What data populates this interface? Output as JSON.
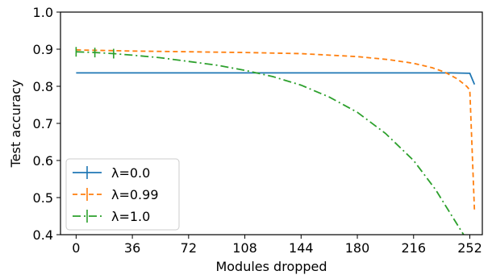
{
  "chart_data": {
    "type": "line",
    "title": "",
    "xlabel": "Modules dropped",
    "ylabel": "Test accuracy",
    "xlim": [
      -10,
      260
    ],
    "ylim": [
      0.4,
      1.0
    ],
    "xticks": [
      0,
      36,
      72,
      108,
      144,
      180,
      216,
      252
    ],
    "yticks": [
      0.4,
      0.5,
      0.6,
      0.7,
      0.8,
      0.9,
      1.0
    ],
    "xtick_labels": [
      "0",
      "36",
      "72",
      "108",
      "144",
      "180",
      "216",
      "252"
    ],
    "ytick_labels": [
      "0.4",
      "0.5",
      "0.6",
      "0.7",
      "0.8",
      "0.9",
      "1.0"
    ],
    "grid": false,
    "legend_position": "lower-left",
    "series": [
      {
        "name": "λ=0.0",
        "color": "#1f77b4",
        "style": "solid",
        "x": [
          0,
          36,
          72,
          108,
          144,
          180,
          216,
          240,
          252,
          255
        ],
        "y": [
          0.836,
          0.836,
          0.836,
          0.836,
          0.836,
          0.836,
          0.836,
          0.836,
          0.835,
          0.805
        ]
      },
      {
        "name": "λ=0.99",
        "color": "#ff7f0e",
        "style": "dashed",
        "x": [
          0,
          36,
          72,
          108,
          144,
          180,
          200,
          216,
          228,
          236,
          244,
          250,
          252,
          255
        ],
        "y": [
          0.898,
          0.895,
          0.893,
          0.891,
          0.888,
          0.88,
          0.872,
          0.862,
          0.85,
          0.838,
          0.82,
          0.8,
          0.79,
          0.463
        ]
      },
      {
        "name": "λ=1.0",
        "color": "#2ca02c",
        "style": "dashdot",
        "x": [
          0,
          12,
          24,
          36,
          54,
          72,
          90,
          108,
          126,
          144,
          162,
          180,
          198,
          216,
          230,
          240,
          248
        ],
        "y": [
          0.893,
          0.891,
          0.888,
          0.884,
          0.877,
          0.867,
          0.857,
          0.843,
          0.826,
          0.803,
          0.771,
          0.73,
          0.673,
          0.6,
          0.522,
          0.454,
          0.4
        ]
      }
    ],
    "error_bars": {
      "series": "λ=1.0",
      "x": [
        0,
        12,
        24
      ],
      "y": [
        0.893,
        0.891,
        0.888
      ]
    }
  }
}
